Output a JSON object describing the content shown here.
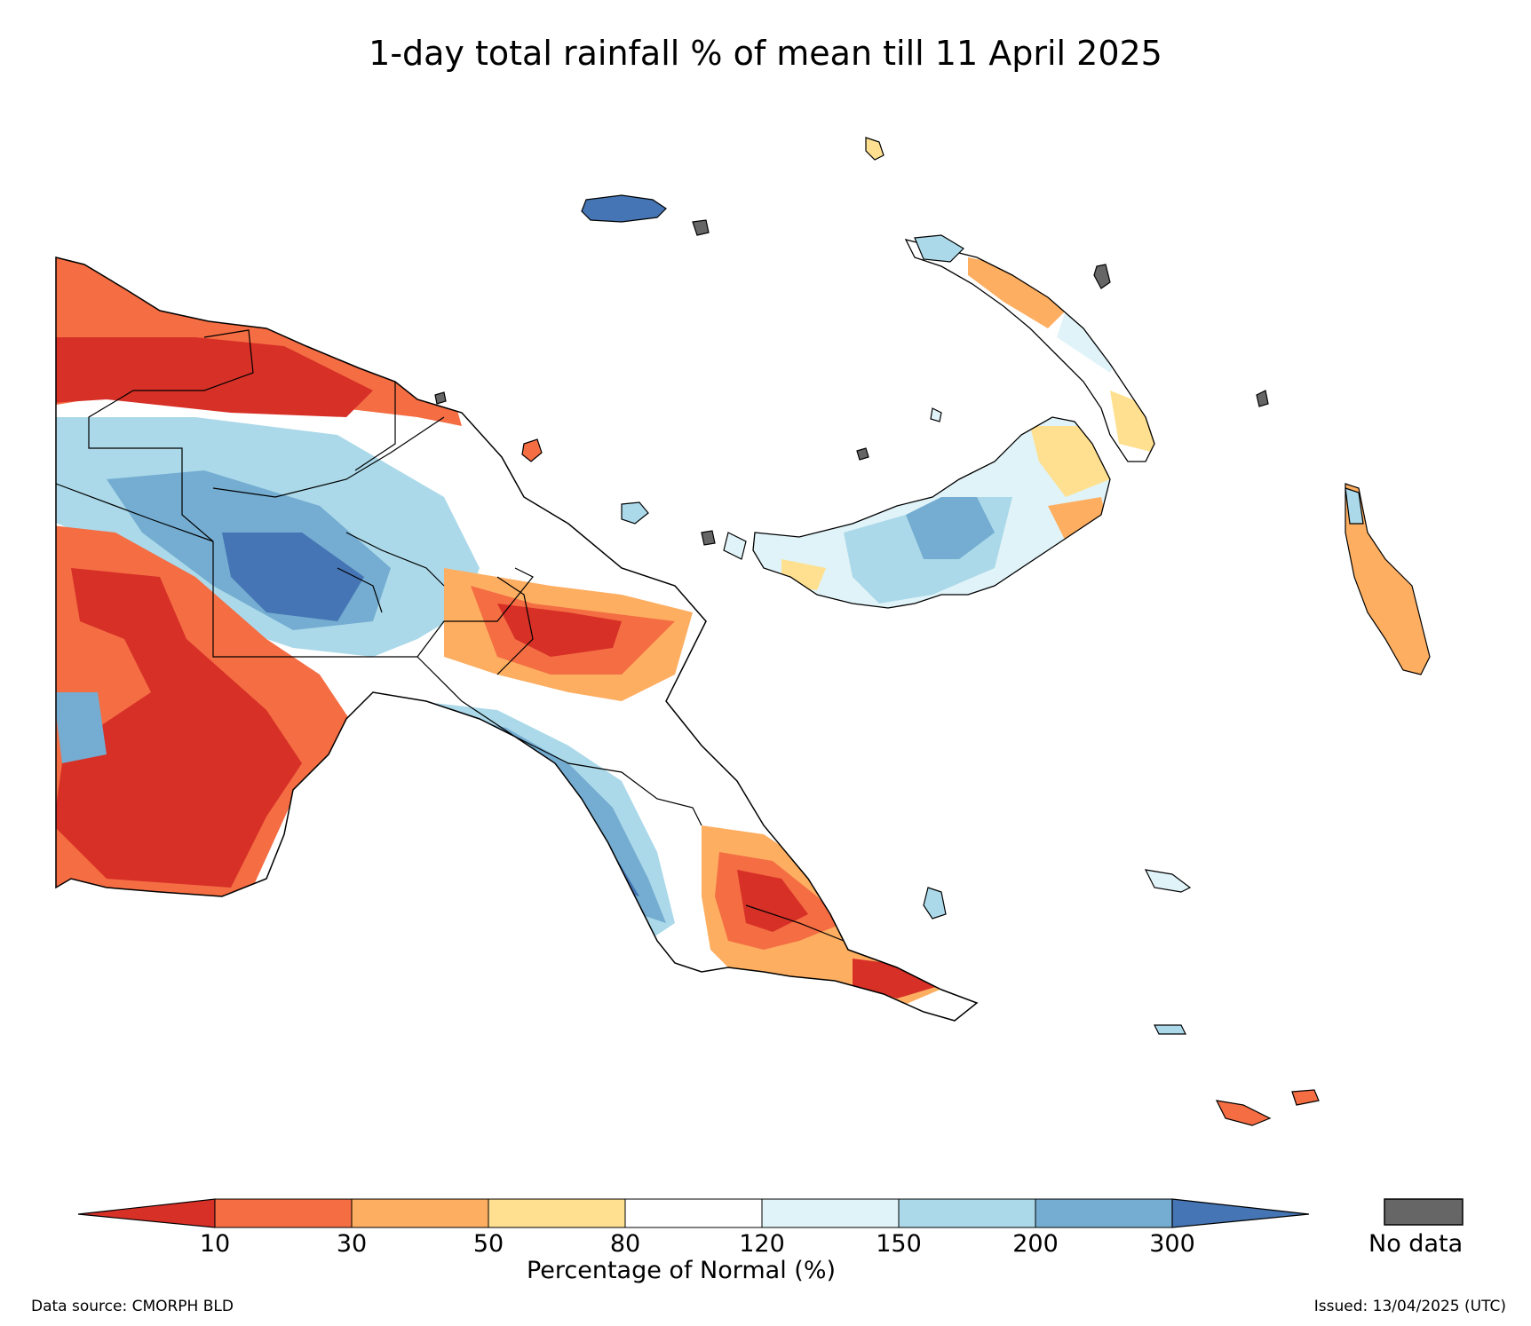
{
  "title": "1-day total rainfall % of mean till 11 April 2025",
  "colorbar": {
    "ticks": [
      "10",
      "30",
      "50",
      "80",
      "120",
      "150",
      "200",
      "300"
    ],
    "label": "Percentage of Normal (%)",
    "colors": [
      "#d73027",
      "#f46d43",
      "#fdae61",
      "#fee090",
      "#ffffff",
      "#e0f3f8",
      "#abd9e9",
      "#74add1",
      "#4575b4"
    ],
    "no_data_label": "No data",
    "no_data_color": "#666666"
  },
  "footer": {
    "source": "Data source: CMORPH BLD",
    "issued": "Issued: 13/04/2025 (UTC)"
  }
}
